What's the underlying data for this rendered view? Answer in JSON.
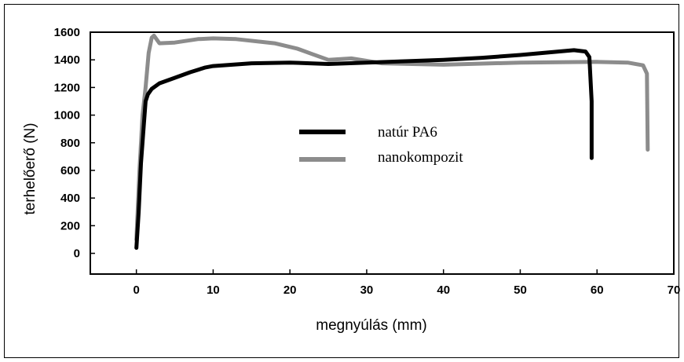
{
  "chart_data": {
    "type": "line",
    "xlabel": "megnyúlás (mm)",
    "ylabel": "terhelőerő (N)",
    "xlim": [
      -6,
      70
    ],
    "ylim": [
      -150,
      1600
    ],
    "xticks": [
      0,
      10,
      20,
      30,
      40,
      50,
      60,
      70
    ],
    "yticks": [
      0,
      200,
      400,
      600,
      800,
      1000,
      1200,
      1400,
      1600
    ],
    "xtick_labels": [
      "0",
      "10",
      "20",
      "30",
      "40",
      "50",
      "60",
      "70"
    ],
    "ytick_labels": [
      "0",
      "200",
      "400",
      "600",
      "800",
      "1000",
      "1200",
      "1400",
      "1600"
    ],
    "grid": false,
    "legend_position": "center",
    "series": [
      {
        "name": "natúr PA6",
        "color": "#000000",
        "x": [
          0,
          0.3,
          0.6,
          1.0,
          1.2,
          1.5,
          2.0,
          3.0,
          5.0,
          7.0,
          9.0,
          10.0,
          15.0,
          20.0,
          25.0,
          30.0,
          35.0,
          40.0,
          45.0,
          50.0,
          54.0,
          57.0,
          58.5,
          59.0,
          59.3,
          59.3
        ],
        "y": [
          40,
          300,
          650,
          950,
          1100,
          1150,
          1190,
          1230,
          1270,
          1310,
          1345,
          1355,
          1375,
          1380,
          1370,
          1380,
          1390,
          1400,
          1415,
          1435,
          1455,
          1470,
          1460,
          1420,
          1100,
          690
        ]
      },
      {
        "name": "nanokompozit",
        "color": "#8c8c8c",
        "x": [
          0,
          0.4,
          0.8,
          1.2,
          1.6,
          2.0,
          2.3,
          3.0,
          5.0,
          8.0,
          10.0,
          13.0,
          18.0,
          21.0,
          23.0,
          25.0,
          28.0,
          32.0,
          40.0,
          50.0,
          60.0,
          64.0,
          66.0,
          66.5,
          66.6
        ],
        "y": [
          100,
          600,
          1000,
          1200,
          1450,
          1560,
          1575,
          1520,
          1525,
          1550,
          1555,
          1550,
          1520,
          1480,
          1440,
          1400,
          1410,
          1375,
          1365,
          1380,
          1385,
          1380,
          1360,
          1300,
          750
        ]
      }
    ]
  }
}
